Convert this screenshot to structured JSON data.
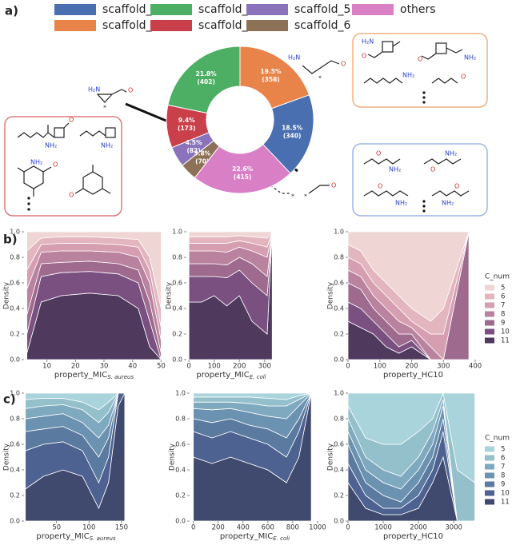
{
  "panel_labels": [
    "a)",
    "b)",
    "c)"
  ],
  "atom_labels": {
    "amine": "NH₂",
    "amine_left": "H₂N",
    "oxygen": "O",
    "star": "*"
  },
  "chart_data": [
    {
      "type": "donut",
      "categories": [
        "scaffold_1",
        "scaffold_2",
        "scaffold_3",
        "scaffold_4",
        "scaffold_5",
        "scaffold_6",
        "others"
      ],
      "values": [
        18.5,
        19.5,
        21.8,
        9.4,
        4.5,
        3.8,
        22.6
      ],
      "value_labels": [
        "18.5%",
        "19.5%",
        "21.8%",
        "9.4%",
        "4.5%",
        "3.8%",
        "22.6%"
      ],
      "counts": [
        340,
        358,
        402,
        173,
        82,
        70,
        415
      ],
      "count_labels": [
        "(340)",
        "(358)",
        "(402)",
        "(173)",
        "(82)",
        "(70)",
        "(415)"
      ],
      "colors": [
        "#4a6fb0",
        "#e8834a",
        "#4caf64",
        "#c9404b",
        "#8a73bb",
        "#8d7157",
        "#d97fc6"
      ]
    },
    {
      "type": "stacked-density",
      "xlabel": "property_MIC",
      "xlabel_sub": "S. aureus",
      "ylabel": "Density",
      "xlim": [
        2,
        51
      ],
      "xticks": [
        10,
        20,
        30,
        40,
        50
      ],
      "ylim": [
        0,
        1
      ],
      "yticks": [
        {
          "value": 0,
          "label": "0.0"
        },
        {
          "value": 0.2,
          "label": "0.2"
        },
        {
          "value": 0.4,
          "label": "0.4"
        },
        {
          "value": 0.6,
          "label": "0.6"
        },
        {
          "value": 0.8,
          "label": "0.8"
        },
        {
          "value": 1,
          "label": "1.0"
        }
      ],
      "x": [
        3,
        8,
        15,
        25,
        35,
        42,
        46,
        50
      ],
      "series": [
        {
          "name": "5",
          "color": "#f0d5d5",
          "values": [
            0.15,
            0.05,
            0.04,
            0.04,
            0.05,
            0.06,
            0.2,
            0.6
          ]
        },
        {
          "name": "6",
          "color": "#e3b6bf",
          "values": [
            0.15,
            0.05,
            0.05,
            0.05,
            0.05,
            0.06,
            0.1,
            0.15
          ]
        },
        {
          "name": "7",
          "color": "#d59fb1",
          "values": [
            0.15,
            0.06,
            0.06,
            0.06,
            0.06,
            0.08,
            0.1,
            0.1
          ]
        },
        {
          "name": "8",
          "color": "#b9829e",
          "values": [
            0.2,
            0.09,
            0.09,
            0.08,
            0.09,
            0.1,
            0.15,
            0.1
          ]
        },
        {
          "name": "9",
          "color": "#9e6b8f",
          "values": [
            0.15,
            0.1,
            0.08,
            0.08,
            0.08,
            0.1,
            0.15,
            0.05
          ]
        },
        {
          "name": "10",
          "color": "#7a5080",
          "values": [
            0.15,
            0.2,
            0.18,
            0.17,
            0.17,
            0.2,
            0.2,
            0
          ]
        },
        {
          "name": "11",
          "color": "#4f3a5e",
          "values": [
            0.05,
            0.45,
            0.5,
            0.52,
            0.5,
            0.4,
            0.1,
            0
          ]
        }
      ]
    },
    {
      "type": "stacked-density",
      "xlabel": "property_MIC",
      "xlabel_sub": "E. coli",
      "ylabel": "Density",
      "xlim": [
        -10,
        345
      ],
      "xticks": [
        0,
        100,
        200,
        300
      ],
      "ylim": [
        0,
        1
      ],
      "yticks": [
        {
          "value": 0,
          "label": "0.0"
        },
        {
          "value": 0.2,
          "label": "0.2"
        },
        {
          "value": 0.4,
          "label": "0.4"
        },
        {
          "value": 0.6,
          "label": "0.6"
        },
        {
          "value": 0.8,
          "label": "0.8"
        },
        {
          "value": 1,
          "label": "1.0"
        }
      ],
      "x": [
        0,
        50,
        100,
        150,
        200,
        250,
        310,
        330
      ],
      "series": [
        {
          "name": "5",
          "color": "#f0d5d5",
          "values": [
            0.04,
            0.04,
            0.04,
            0.04,
            0.03,
            0.04,
            0.05,
            0
          ]
        },
        {
          "name": "6",
          "color": "#e3b6bf",
          "values": [
            0.05,
            0.05,
            0.05,
            0.05,
            0.04,
            0.05,
            0.07,
            0
          ]
        },
        {
          "name": "7",
          "color": "#d59fb1",
          "values": [
            0.06,
            0.06,
            0.06,
            0.07,
            0.05,
            0.06,
            0.08,
            0
          ]
        },
        {
          "name": "8",
          "color": "#b9829e",
          "values": [
            0.1,
            0.1,
            0.1,
            0.1,
            0.08,
            0.1,
            0.15,
            0
          ]
        },
        {
          "name": "9",
          "color": "#9e6b8f",
          "values": [
            0.1,
            0.1,
            0.1,
            0.1,
            0.1,
            0.15,
            0.15,
            0
          ]
        },
        {
          "name": "10",
          "color": "#7a5080",
          "values": [
            0.2,
            0.2,
            0.15,
            0.22,
            0.2,
            0.3,
            0.3,
            0
          ]
        },
        {
          "name": "11",
          "color": "#4f3a5e",
          "values": [
            0.45,
            0.45,
            0.5,
            0.42,
            0.5,
            0.3,
            0.2,
            1
          ]
        }
      ]
    },
    {
      "type": "stacked-density",
      "xlabel": "property_HC10",
      "ylabel": "Density",
      "legend_title": "C_num",
      "xlim": [
        0,
        410
      ],
      "xticks": [
        0,
        100,
        200,
        300,
        400
      ],
      "ylim": [
        0,
        1
      ],
      "yticks": [
        {
          "value": 0,
          "label": "0.0"
        },
        {
          "value": 0.2,
          "label": "0.2"
        },
        {
          "value": 0.4,
          "label": "0.4"
        },
        {
          "value": 0.6,
          "label": "0.6"
        },
        {
          "value": 0.8,
          "label": "0.8"
        },
        {
          "value": 1,
          "label": "1.0"
        }
      ],
      "x": [
        0,
        40,
        80,
        120,
        160,
        200,
        260,
        300,
        380
      ],
      "series": [
        {
          "name": "5",
          "color": "#f0d5d5",
          "values": [
            0.1,
            0.15,
            0.3,
            0.4,
            0.5,
            0.6,
            0.7,
            0.6,
            0
          ]
        },
        {
          "name": "6",
          "color": "#e3b6bf",
          "values": [
            0.1,
            0.1,
            0.1,
            0.1,
            0.1,
            0.1,
            0.1,
            0.2,
            0
          ]
        },
        {
          "name": "7",
          "color": "#d59fb1",
          "values": [
            0.1,
            0.1,
            0.1,
            0.1,
            0.1,
            0.05,
            0.1,
            0.2,
            0
          ]
        },
        {
          "name": "8",
          "color": "#b9829e",
          "values": [
            0.1,
            0.1,
            0.1,
            0.1,
            0.1,
            0.05,
            0.1,
            0,
            0
          ]
        },
        {
          "name": "9",
          "color": "#9e6b8f",
          "values": [
            0.15,
            0.15,
            0.1,
            0.1,
            0.1,
            0.05,
            0,
            0,
            1
          ]
        },
        {
          "name": "10",
          "color": "#7a5080",
          "values": [
            0.15,
            0.15,
            0.1,
            0.1,
            0.05,
            0.05,
            0,
            0,
            0
          ]
        },
        {
          "name": "11",
          "color": "#4f3a5e",
          "values": [
            0.3,
            0.25,
            0.2,
            0.1,
            0.05,
            0.1,
            0,
            0,
            0
          ]
        }
      ]
    },
    {
      "type": "stacked-density",
      "xlabel": "property_MIC",
      "xlabel_sub": "S. aureus",
      "ylabel": "Density",
      "xlim": [
        0,
        160
      ],
      "xticks": [
        50,
        100,
        150
      ],
      "ylim": [
        0,
        1
      ],
      "yticks": [
        {
          "value": 0,
          "label": "0.0"
        },
        {
          "value": 0.2,
          "label": "0.2"
        },
        {
          "value": 0.4,
          "label": "0.4"
        },
        {
          "value": 0.6,
          "label": "0.6"
        },
        {
          "value": 0.8,
          "label": "0.8"
        },
        {
          "value": 1,
          "label": "1.0"
        }
      ],
      "x": [
        2,
        30,
        60,
        90,
        115,
        130,
        145,
        155
      ],
      "series": [
        {
          "name": "5",
          "color": "#a9d4db",
          "values": [
            0.05,
            0.04,
            0.04,
            0.07,
            0.13,
            0.07,
            0,
            0
          ]
        },
        {
          "name": "6",
          "color": "#94c0cc",
          "values": [
            0.07,
            0.06,
            0.05,
            0.06,
            0.1,
            0.08,
            0,
            0
          ]
        },
        {
          "name": "7",
          "color": "#7fa9bf",
          "values": [
            0.08,
            0.08,
            0.07,
            0.1,
            0.12,
            0.1,
            0,
            0
          ]
        },
        {
          "name": "8",
          "color": "#6b92b0",
          "values": [
            0.1,
            0.1,
            0.1,
            0.1,
            0.15,
            0.1,
            0,
            0
          ]
        },
        {
          "name": "9",
          "color": "#5a7aa0",
          "values": [
            0.15,
            0.12,
            0.12,
            0.12,
            0.2,
            0.15,
            0,
            0
          ]
        },
        {
          "name": "10",
          "color": "#4d6290",
          "values": [
            0.3,
            0.25,
            0.22,
            0.2,
            0.2,
            0.2,
            0.1,
            0
          ]
        },
        {
          "name": "11",
          "color": "#404a6e",
          "values": [
            0.25,
            0.35,
            0.4,
            0.35,
            0.1,
            0.3,
            0.9,
            1
          ]
        }
      ]
    },
    {
      "type": "stacked-density",
      "xlabel": "property_MIC",
      "xlabel_sub": "E. coli",
      "ylabel": "Density",
      "xlim": [
        -30,
        1020
      ],
      "xticks": [
        0,
        200,
        400,
        600,
        800,
        1000
      ],
      "ylim": [
        0,
        1
      ],
      "yticks": [
        {
          "value": 0,
          "label": "0.0"
        },
        {
          "value": 0.2,
          "label": "0.2"
        },
        {
          "value": 0.4,
          "label": "0.4"
        },
        {
          "value": 0.6,
          "label": "0.6"
        },
        {
          "value": 0.8,
          "label": "0.8"
        },
        {
          "value": 1,
          "label": "1.0"
        }
      ],
      "x": [
        0,
        150,
        300,
        450,
        600,
        750,
        850,
        950
      ],
      "series": [
        {
          "name": "5",
          "color": "#a9d4db",
          "values": [
            0.03,
            0.03,
            0.03,
            0.03,
            0.04,
            0.05,
            0.02,
            0
          ]
        },
        {
          "name": "6",
          "color": "#94c0cc",
          "values": [
            0.04,
            0.04,
            0.04,
            0.05,
            0.06,
            0.05,
            0.03,
            0
          ]
        },
        {
          "name": "7",
          "color": "#7fa9bf",
          "values": [
            0.05,
            0.06,
            0.05,
            0.07,
            0.08,
            0.1,
            0.05,
            0
          ]
        },
        {
          "name": "8",
          "color": "#6b92b0",
          "values": [
            0.08,
            0.1,
            0.08,
            0.1,
            0.1,
            0.15,
            0.1,
            0
          ]
        },
        {
          "name": "9",
          "color": "#5a7aa0",
          "values": [
            0.1,
            0.12,
            0.1,
            0.1,
            0.12,
            0.15,
            0.1,
            0
          ]
        },
        {
          "name": "10",
          "color": "#4d6290",
          "values": [
            0.2,
            0.2,
            0.2,
            0.2,
            0.2,
            0.2,
            0.2,
            0
          ]
        },
        {
          "name": "11",
          "color": "#404a6e",
          "values": [
            0.5,
            0.45,
            0.5,
            0.45,
            0.4,
            0.3,
            0.5,
            1
          ]
        }
      ]
    },
    {
      "type": "stacked-density",
      "xlabel": "property_HC10",
      "ylabel": "Density",
      "legend_title": "C_num",
      "xlim": [
        0,
        3700
      ],
      "xticks": [
        0,
        1000,
        2000,
        3000
      ],
      "ylim": [
        0,
        1
      ],
      "yticks": [
        {
          "value": 0,
          "label": "0.0"
        },
        {
          "value": 0.2,
          "label": "0.2"
        },
        {
          "value": 0.4,
          "label": "0.4"
        },
        {
          "value": 0.6,
          "label": "0.6"
        },
        {
          "value": 0.8,
          "label": "0.8"
        },
        {
          "value": 1,
          "label": "1.0"
        }
      ],
      "x": [
        0,
        500,
        1000,
        1500,
        2000,
        2400,
        2700,
        3100,
        3600
      ],
      "series": [
        {
          "name": "5",
          "color": "#a9d4db",
          "values": [
            0.1,
            0.35,
            0.4,
            0.4,
            0.3,
            0.2,
            0,
            0.6,
            0.7
          ]
        },
        {
          "name": "6",
          "color": "#94c0cc",
          "values": [
            0.1,
            0.15,
            0.2,
            0.25,
            0.2,
            0.1,
            0.05,
            0.4,
            0.3
          ]
        },
        {
          "name": "7",
          "color": "#7fa9bf",
          "values": [
            0.1,
            0.1,
            0.1,
            0.1,
            0.1,
            0.1,
            0.05,
            0,
            0
          ]
        },
        {
          "name": "8",
          "color": "#6b92b0",
          "values": [
            0.1,
            0.1,
            0.1,
            0.1,
            0.1,
            0.1,
            0.1,
            0,
            0
          ]
        },
        {
          "name": "9",
          "color": "#5a7aa0",
          "values": [
            0.15,
            0.1,
            0.1,
            0.05,
            0.1,
            0.1,
            0.1,
            0,
            0
          ]
        },
        {
          "name": "10",
          "color": "#4d6290",
          "values": [
            0.15,
            0.1,
            0.05,
            0.05,
            0.1,
            0.1,
            0.2,
            0,
            0
          ]
        },
        {
          "name": "11",
          "color": "#404a6e",
          "values": [
            0.3,
            0.1,
            0.05,
            0.05,
            0.1,
            0.3,
            0.5,
            0,
            0
          ]
        }
      ]
    }
  ]
}
